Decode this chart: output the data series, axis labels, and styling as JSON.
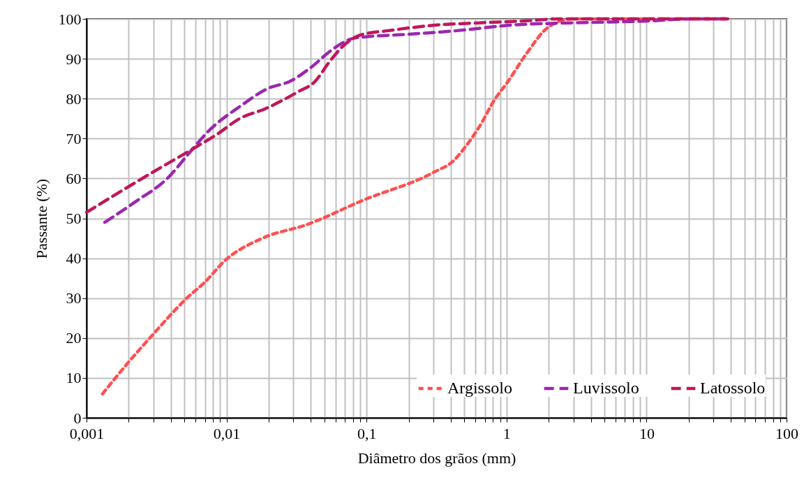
{
  "chart_data": {
    "type": "line",
    "xlabel": "Diâmetro dos grãos (mm)",
    "ylabel": "Passante (%)",
    "log": "x",
    "grid": true,
    "legend": "bottom right",
    "marker": "none",
    "xlim": [
      0.001,
      100
    ],
    "ylim": [
      0,
      100
    ],
    "xticks": [
      {
        "value": 0.001,
        "label": "0,001"
      },
      {
        "value": 0.002,
        "label": null
      },
      {
        "value": 0.003,
        "label": null
      },
      {
        "value": 0.004,
        "label": null
      },
      {
        "value": 0.005,
        "label": null
      },
      {
        "value": 0.006,
        "label": null
      },
      {
        "value": 0.007,
        "label": null
      },
      {
        "value": 0.008,
        "label": null
      },
      {
        "value": 0.009,
        "label": null
      },
      {
        "value": 0.01,
        "label": "0,01"
      },
      {
        "value": 0.02,
        "label": null
      },
      {
        "value": 0.03,
        "label": null
      },
      {
        "value": 0.04,
        "label": null
      },
      {
        "value": 0.05,
        "label": null
      },
      {
        "value": 0.06,
        "label": null
      },
      {
        "value": 0.07,
        "label": null
      },
      {
        "value": 0.08,
        "label": null
      },
      {
        "value": 0.09,
        "label": null
      },
      {
        "value": 0.1,
        "label": "0,1"
      },
      {
        "value": 0.2,
        "label": null
      },
      {
        "value": 0.3,
        "label": null
      },
      {
        "value": 0.4,
        "label": null
      },
      {
        "value": 0.5,
        "label": null
      },
      {
        "value": 0.6,
        "label": null
      },
      {
        "value": 0.7,
        "label": null
      },
      {
        "value": 0.8,
        "label": null
      },
      {
        "value": 0.9,
        "label": null
      },
      1,
      {
        "value": 2,
        "label": null
      },
      {
        "value": 3,
        "label": null
      },
      {
        "value": 4,
        "label": null
      },
      {
        "value": 5,
        "label": null
      },
      {
        "value": 6,
        "label": null
      },
      {
        "value": 7,
        "label": null
      },
      {
        "value": 8,
        "label": null
      },
      {
        "value": 9,
        "label": null
      },
      10,
      {
        "value": 20,
        "label": null
      },
      {
        "value": 30,
        "label": null
      },
      {
        "value": 40,
        "label": null
      },
      {
        "value": 50,
        "label": null
      },
      {
        "value": 60,
        "label": null
      },
      {
        "value": 70,
        "label": null
      },
      {
        "value": 80,
        "label": null
      },
      {
        "value": 90,
        "label": null
      },
      100
    ],
    "yticks": [
      0,
      10,
      20,
      30,
      40,
      50,
      60,
      70,
      80,
      90,
      100
    ],
    "series": [
      {
        "name": "Argissolo",
        "color": "#ff5050",
        "line_style": "dotted",
        "x": [
          0.0013,
          0.002,
          0.003,
          0.0052,
          0.007,
          0.0098,
          0.018,
          0.038,
          0.094,
          0.3,
          0.42,
          0.51,
          0.64,
          0.83,
          1.01,
          1.37,
          2.0,
          2.95,
          37
        ],
        "values": [
          6,
          14,
          21,
          30,
          34,
          39.5,
          45,
          48.5,
          54.5,
          61.5,
          64.5,
          68,
          73,
          80,
          84,
          91,
          98,
          100,
          100
        ]
      },
      {
        "name": "Luvissolo",
        "color": "#9b27b0",
        "line_style": "dashed",
        "x": [
          0.00135,
          0.0022,
          0.0039,
          0.0053,
          0.0075,
          0.0124,
          0.0196,
          0.029,
          0.039,
          0.058,
          0.078,
          0.098,
          0.17,
          0.43,
          1.14,
          2.95,
          10.8,
          20.7,
          38
        ],
        "values": [
          49,
          54,
          60.5,
          66,
          72,
          78,
          82.5,
          84.5,
          87.5,
          92.5,
          95,
          95.5,
          96,
          97,
          98.5,
          99,
          99.5,
          100,
          100
        ]
      },
      {
        "name": "Latossolo",
        "color": "#c0175a",
        "line_style": "dashed",
        "x": [
          0.001,
          0.0018,
          0.0033,
          0.0058,
          0.0085,
          0.0124,
          0.019,
          0.0335,
          0.042,
          0.055,
          0.065,
          0.091,
          0.14,
          0.33,
          0.64,
          1.37,
          2.4,
          38
        ],
        "values": [
          51.5,
          57,
          62.5,
          67.5,
          71,
          75,
          77.5,
          82,
          84,
          89.5,
          92.5,
          96,
          97,
          98.5,
          99,
          99.5,
          100,
          100
        ]
      }
    ]
  }
}
